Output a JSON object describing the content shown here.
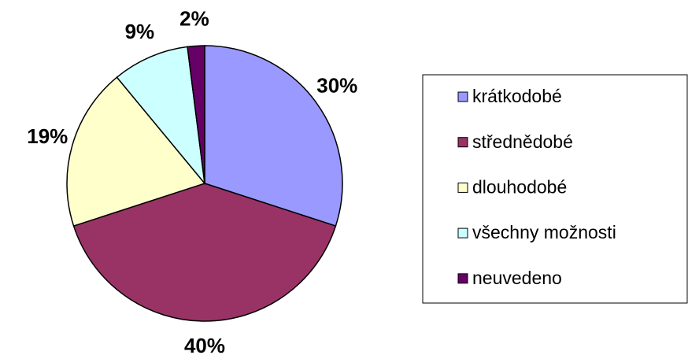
{
  "chart_data": {
    "type": "pie",
    "categories": [
      "krátkodobé",
      "střednědobé",
      "dlouhodobé",
      "všechny možnosti",
      "neuvedeno"
    ],
    "values": [
      30,
      40,
      19,
      9,
      2
    ],
    "value_labels": [
      "30%",
      "40%",
      "19%",
      "9%",
      "2%"
    ],
    "colors": [
      "#9999ff",
      "#993366",
      "#ffffcc",
      "#ccffff",
      "#660066"
    ],
    "legend": "right"
  }
}
